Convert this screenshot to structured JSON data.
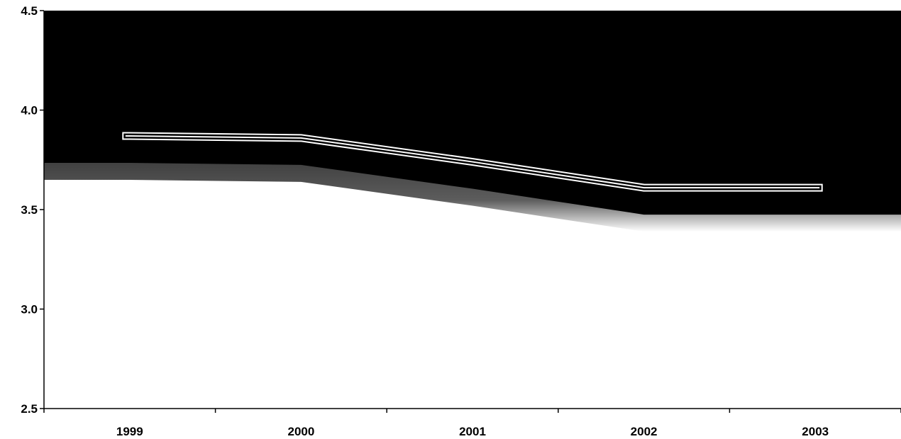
{
  "chart_data": {
    "type": "line",
    "categories": [
      "1999",
      "2000",
      "2001",
      "2002",
      "2003"
    ],
    "series": [
      {
        "values": [
          3.87,
          3.86,
          3.74,
          3.61,
          3.61
        ]
      }
    ],
    "y_tick_labels": [
      "2.5",
      "3.0",
      "3.5",
      "4.0",
      "4.5"
    ],
    "y_ticks": [
      2.5,
      3.0,
      3.5,
      4.0,
      4.5
    ],
    "ylim": [
      2.5,
      4.5
    ],
    "title": "",
    "xlabel": "",
    "ylabel": "",
    "grid": false,
    "legend": "none",
    "colors": {
      "upper_fill": "#000000",
      "lower_fill": "#ffffff",
      "line_stroke": "#ffffff",
      "line_outline": "#000000",
      "axis": "#000000"
    }
  }
}
